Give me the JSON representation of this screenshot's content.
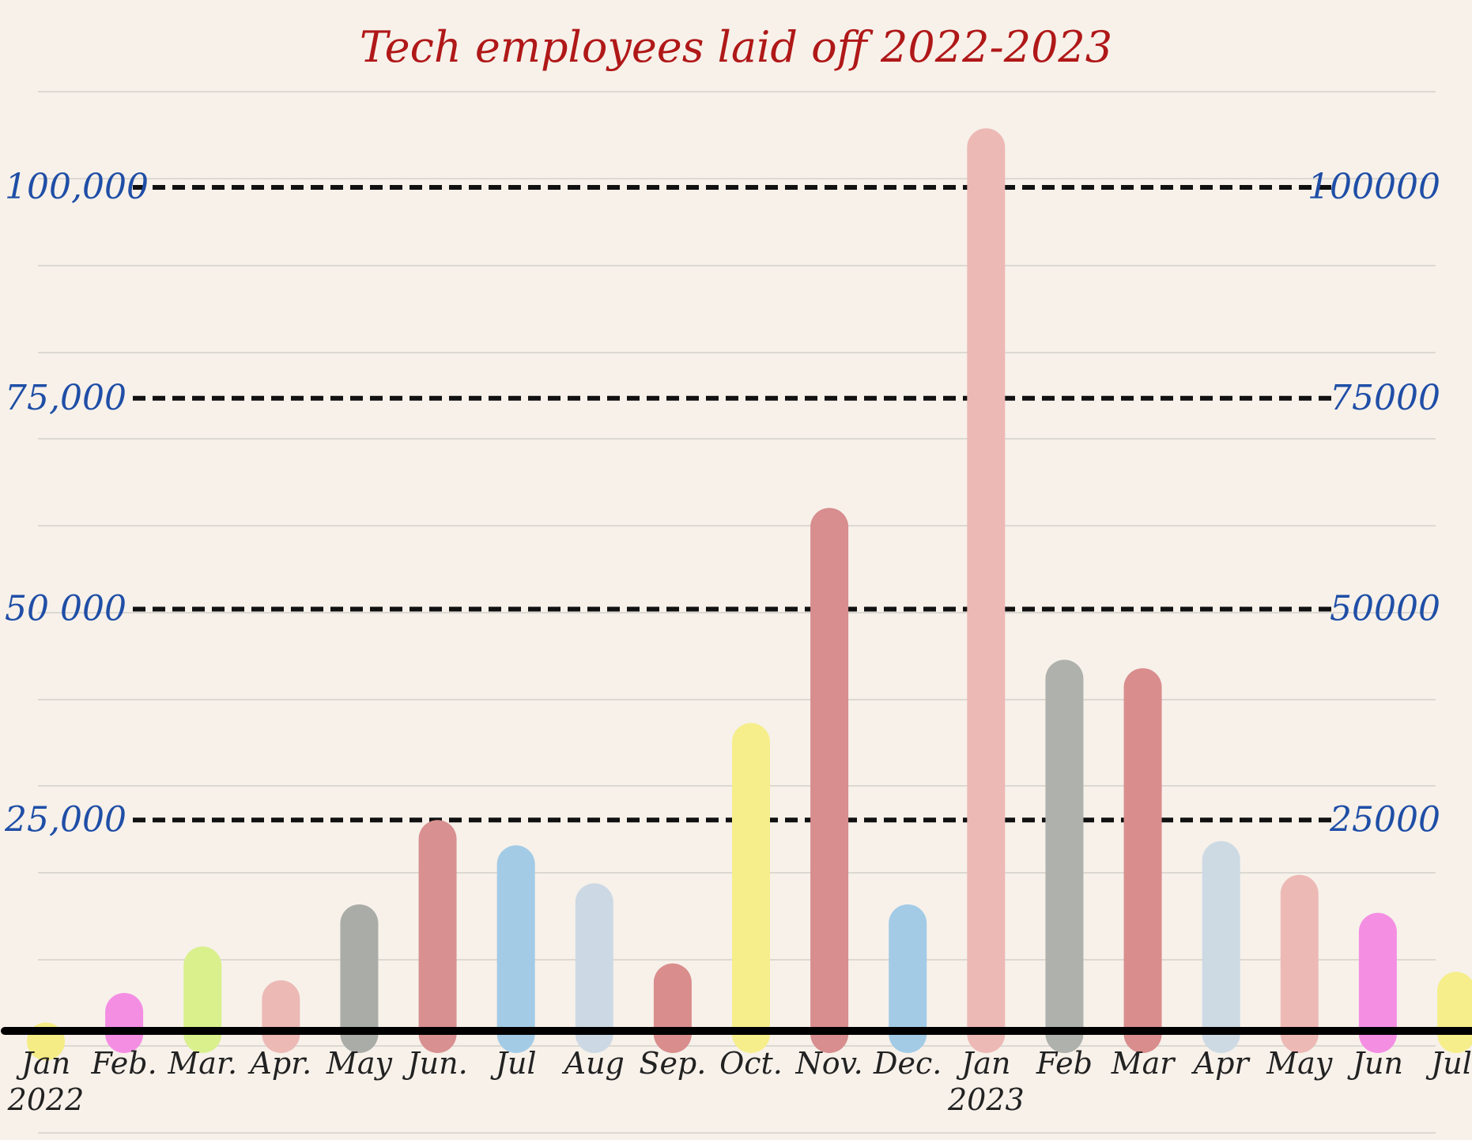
{
  "chart_data": {
    "type": "bar",
    "title": "Tech employees laid off 2022-2023",
    "xlabel": "",
    "ylabel": "",
    "ylim": [
      0,
      100000
    ],
    "grid": true,
    "y_ticks_left": [
      {
        "value": 25000,
        "label": "25,000"
      },
      {
        "value": 50000,
        "label": "50 000"
      },
      {
        "value": 75000,
        "label": "75,000"
      },
      {
        "value": 100000,
        "label": "100,000"
      }
    ],
    "y_ticks_right": [
      {
        "value": 25000,
        "label": "25000"
      },
      {
        "value": 50000,
        "label": "50000"
      },
      {
        "value": 75000,
        "label": "75000"
      },
      {
        "value": 100000,
        "label": "100000"
      }
    ],
    "categories": [
      "Jan\n2022",
      "Feb.",
      "Mar.",
      "Apr.",
      "May",
      "Jun.",
      "Jul",
      "Aug",
      "Sep.",
      "Oct.",
      "Nov.",
      "Dec.",
      "Jan\n2023",
      "Feb",
      "Mar",
      "Apr",
      "May",
      "Jun",
      "Jul."
    ],
    "values": [
      1000,
      4500,
      10000,
      6000,
      15000,
      25000,
      22000,
      17500,
      8000,
      36500,
      62000,
      15000,
      107000,
      44000,
      43000,
      22500,
      18500,
      14000,
      7000
    ],
    "colors": [
      "#f5ec85",
      "#f48ee3",
      "#d9f08c",
      "#ecb9b5",
      "#aaaca7",
      "#d99090",
      "#a3cbe6",
      "#ccd9e4",
      "#d98d8c",
      "#f6ee8b",
      "#d88d8e",
      "#a3cbe6",
      "#edb9b5",
      "#aeb1ac",
      "#d98d8d",
      "#cddae4",
      "#edb9b5",
      "#f48ee3",
      "#f6ee8b"
    ]
  }
}
